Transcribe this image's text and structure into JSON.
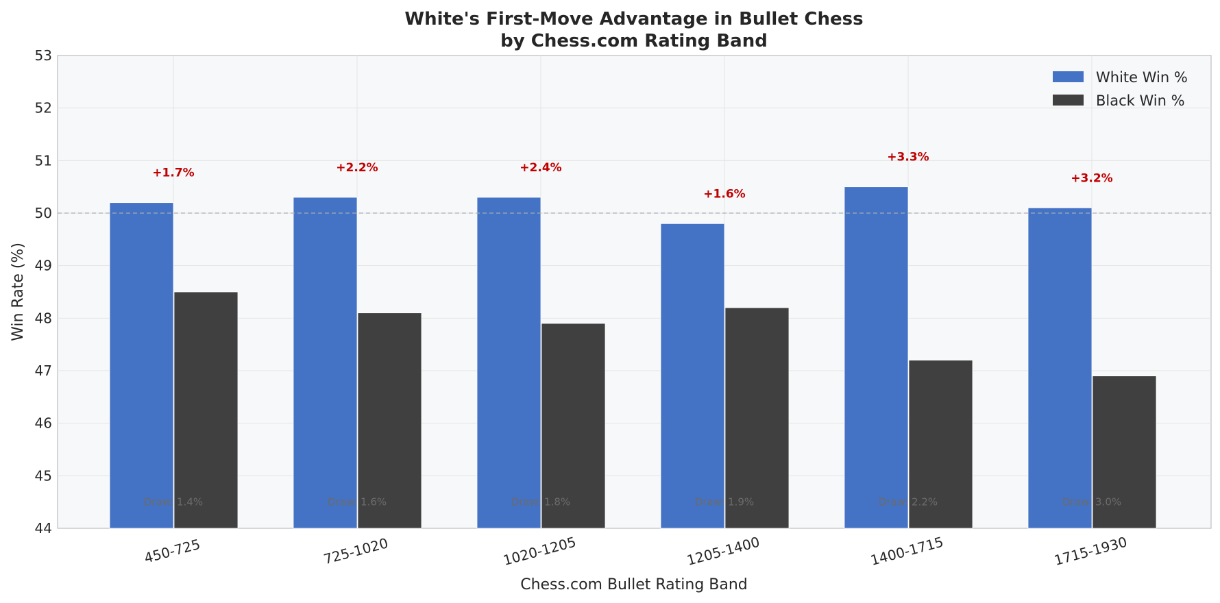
{
  "chart_data": {
    "type": "bar",
    "title": "White's First-Move Advantage in Bullet Chess",
    "subtitle": "by Chess.com Rating Band",
    "xlabel": "Chess.com Bullet Rating Band",
    "ylabel": "Win Rate (%)",
    "ylim": [
      44,
      53
    ],
    "yticks": [
      "44",
      "45",
      "46",
      "47",
      "48",
      "49",
      "50",
      "51",
      "52",
      "53"
    ],
    "categories": [
      "450-725",
      "725-1020",
      "1020-1205",
      "1205-1400",
      "1400-1715",
      "1715-1930"
    ],
    "series": [
      {
        "name": "White Win %",
        "color": "#4472c4",
        "values": [
          50.2,
          50.3,
          50.3,
          49.8,
          50.5,
          50.1
        ]
      },
      {
        "name": "Black Win %",
        "color": "#404040",
        "values": [
          48.5,
          48.1,
          47.9,
          48.2,
          47.2,
          46.9
        ]
      }
    ],
    "advantage_labels": [
      "+1.7%",
      "+2.2%",
      "+2.4%",
      "+1.6%",
      "+3.3%",
      "+3.2%"
    ],
    "draw_labels": [
      "Draw: 1.4%",
      "Draw: 1.6%",
      "Draw: 1.8%",
      "Draw: 1.9%",
      "Draw: 2.2%",
      "Draw: 3.0%"
    ],
    "reference_line": 50,
    "grid": true,
    "legend_position": "top-right",
    "colors": {
      "advantage_text": "#c00000",
      "plot_background": "#f7f8fa",
      "grid": "#e3e3e3"
    }
  }
}
